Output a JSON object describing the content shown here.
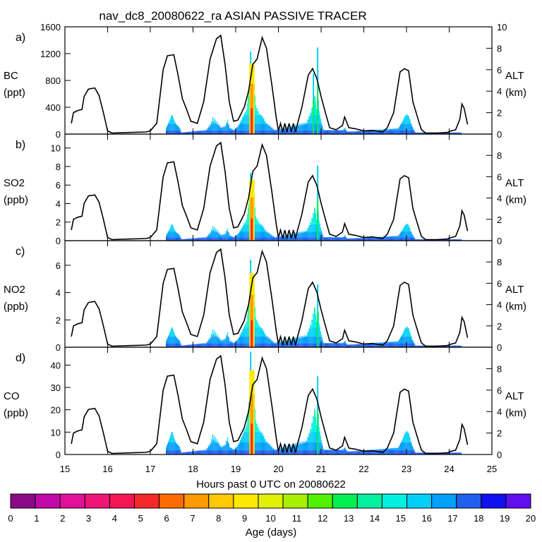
{
  "chart_data": {
    "type": "area",
    "title": "nav_dc8_20080622_ra ASIAN PASSIVE TRACER",
    "xlabel": "Hours past 0 UTC on 20080622",
    "xlim": [
      15,
      25
    ],
    "x_ticks": [
      "15",
      "16",
      "17",
      "18",
      "19",
      "20",
      "21",
      "22",
      "23",
      "24",
      "25"
    ],
    "altitude_axis": {
      "label": "ALT",
      "units": "(km)",
      "ticks": [
        "0",
        "2",
        "4",
        "6",
        "8",
        "10"
      ],
      "flight_track": [
        [
          15.15,
          1.0
        ],
        [
          15.2,
          2.0
        ],
        [
          15.3,
          2.2
        ],
        [
          15.4,
          2.3
        ],
        [
          15.45,
          3.5
        ],
        [
          15.55,
          4.2
        ],
        [
          15.7,
          4.3
        ],
        [
          15.8,
          3.6
        ],
        [
          15.9,
          2.0
        ],
        [
          16.0,
          0.3
        ],
        [
          16.1,
          0.1
        ],
        [
          16.5,
          0.15
        ],
        [
          16.9,
          0.2
        ],
        [
          17.0,
          0.3
        ],
        [
          17.15,
          1.0
        ],
        [
          17.3,
          6.0
        ],
        [
          17.4,
          7.3
        ],
        [
          17.55,
          7.4
        ],
        [
          17.65,
          5.5
        ],
        [
          17.75,
          3.3
        ],
        [
          17.85,
          2.3
        ],
        [
          17.95,
          1.2
        ],
        [
          18.1,
          1.0
        ],
        [
          18.25,
          3.0
        ],
        [
          18.4,
          7.0
        ],
        [
          18.55,
          8.9
        ],
        [
          18.65,
          9.2
        ],
        [
          18.75,
          6.5
        ],
        [
          18.85,
          3.0
        ],
        [
          18.95,
          1.2
        ],
        [
          19.05,
          1.3
        ],
        [
          19.2,
          2.5
        ],
        [
          19.3,
          4.0
        ],
        [
          19.4,
          6.5
        ],
        [
          19.5,
          7.0
        ],
        [
          19.62,
          9.0
        ],
        [
          19.72,
          8.0
        ],
        [
          19.85,
          4.5
        ],
        [
          19.95,
          1.5
        ],
        [
          20.0,
          0.3
        ],
        [
          20.05,
          1.0
        ],
        [
          20.1,
          0.2
        ],
        [
          20.15,
          1.0
        ],
        [
          20.2,
          0.2
        ],
        [
          20.25,
          1.0
        ],
        [
          20.3,
          0.2
        ],
        [
          20.35,
          1.0
        ],
        [
          20.4,
          0.2
        ],
        [
          20.45,
          1.0
        ],
        [
          20.55,
          2.5
        ],
        [
          20.7,
          5.5
        ],
        [
          20.8,
          6.1
        ],
        [
          20.9,
          5.2
        ],
        [
          21.0,
          3.5
        ],
        [
          21.1,
          2.0
        ],
        [
          21.2,
          0.6
        ],
        [
          21.35,
          0.4
        ],
        [
          21.5,
          0.8
        ],
        [
          21.55,
          1.6
        ],
        [
          21.65,
          0.6
        ],
        [
          21.8,
          0.5
        ],
        [
          22.0,
          0.3
        ],
        [
          22.2,
          0.35
        ],
        [
          22.45,
          0.2
        ],
        [
          22.55,
          0.6
        ],
        [
          22.7,
          2.0
        ],
        [
          22.85,
          5.8
        ],
        [
          22.95,
          6.1
        ],
        [
          23.05,
          5.9
        ],
        [
          23.15,
          3.0
        ],
        [
          23.3,
          1.0
        ],
        [
          23.35,
          0.4
        ],
        [
          23.45,
          0.1
        ],
        [
          23.7,
          0.1
        ],
        [
          23.95,
          0.15
        ],
        [
          24.05,
          0.3
        ],
        [
          24.15,
          0.4
        ],
        [
          24.25,
          1.4
        ],
        [
          24.3,
          2.8
        ],
        [
          24.35,
          2.4
        ],
        [
          24.43,
          0.9
        ]
      ]
    },
    "tracer_profile": [
      [
        17.35,
        0.06
      ],
      [
        17.45,
        0.18
      ],
      [
        17.5,
        0.25
      ],
      [
        17.55,
        0.17
      ],
      [
        17.6,
        0.12
      ],
      [
        17.68,
        0.08
      ],
      [
        17.72,
        0.02
      ],
      [
        18.3,
        0.05
      ],
      [
        18.4,
        0.12
      ],
      [
        18.45,
        0.2
      ],
      [
        18.5,
        0.18
      ],
      [
        18.58,
        0.13
      ],
      [
        18.65,
        0.08
      ],
      [
        18.75,
        0.1
      ],
      [
        18.8,
        0.18
      ],
      [
        18.85,
        0.08
      ],
      [
        18.95,
        0.05
      ],
      [
        19.05,
        0.1
      ],
      [
        19.1,
        0.15
      ],
      [
        19.15,
        0.2
      ],
      [
        19.2,
        0.26
      ],
      [
        19.25,
        0.3
      ],
      [
        19.3,
        0.55
      ],
      [
        19.35,
        0.75
      ],
      [
        19.38,
        0.82
      ],
      [
        19.42,
        0.7
      ],
      [
        19.46,
        0.35
      ],
      [
        19.55,
        0.25
      ],
      [
        19.62,
        0.22
      ],
      [
        19.7,
        0.14
      ],
      [
        19.8,
        0.1
      ],
      [
        19.9,
        0.05
      ],
      [
        20.65,
        0.14
      ],
      [
        20.75,
        0.27
      ],
      [
        20.82,
        0.42
      ],
      [
        20.85,
        0.5
      ],
      [
        20.88,
        0.3
      ],
      [
        20.92,
        0.5
      ],
      [
        20.95,
        0.28
      ],
      [
        21.0,
        0.14
      ],
      [
        21.05,
        0.05
      ],
      [
        21.5,
        0.05
      ],
      [
        21.55,
        0.08
      ],
      [
        21.6,
        0.03
      ],
      [
        22.8,
        0.07
      ],
      [
        22.9,
        0.16
      ],
      [
        22.95,
        0.22
      ],
      [
        23.0,
        0.25
      ],
      [
        23.05,
        0.22
      ],
      [
        23.12,
        0.1
      ],
      [
        23.2,
        0.02
      ],
      [
        24.28,
        0.02
      ]
    ],
    "panels": [
      {
        "label": "a)",
        "species": "BC",
        "units": "(ppt)",
        "ylim": [
          0,
          1600
        ],
        "y_ticks": [
          "0",
          "400",
          "800",
          "1200",
          "1600"
        ],
        "tracer_peak": 1290,
        "spikes": [
          [
            19.35,
            1230
          ],
          [
            20.92,
            1290
          ],
          [
            20.82,
            900
          ]
        ]
      },
      {
        "label": "b)",
        "species": "SO2",
        "units": "(ppb)",
        "ylim": [
          0,
          11.5
        ],
        "y_ticks": [
          "0",
          "2",
          "4",
          "6",
          "8",
          "10"
        ],
        "tracer_peak": 8.0,
        "spikes": [
          [
            20.92,
            8.1
          ],
          [
            19.35,
            7.3
          ]
        ]
      },
      {
        "label": "c)",
        "species": "NO2",
        "units": "(ppb)",
        "ylim": [
          0,
          7.8
        ],
        "y_ticks": [
          "0",
          "2",
          "4",
          "6"
        ],
        "tracer_peak": 6.6,
        "spikes": [
          [
            19.35,
            6.4
          ],
          [
            20.92,
            4.6
          ]
        ]
      },
      {
        "label": "d)",
        "species": "CO",
        "units": "(ppb)",
        "ylim": [
          0,
          48
        ],
        "y_ticks": [
          "0",
          "10",
          "20",
          "30",
          "40"
        ],
        "tracer_peak": 46,
        "spikes": [
          [
            19.35,
            46
          ],
          [
            20.92,
            35
          ]
        ]
      }
    ],
    "colorbar": {
      "label": "Age (days)",
      "ticks": [
        "0",
        "1",
        "2",
        "3",
        "4",
        "5",
        "6",
        "7",
        "8",
        "9",
        "10",
        "11",
        "12",
        "13",
        "14",
        "15",
        "16",
        "17",
        "18",
        "19",
        "20"
      ],
      "colors": [
        "#8a0a8a",
        "#c00aa8",
        "#e0109a",
        "#f01478",
        "#f51454",
        "#f5282a",
        "#ff6a00",
        "#ff9a00",
        "#ffc800",
        "#ffe800",
        "#e0f000",
        "#a8f000",
        "#50f000",
        "#00f050",
        "#00f0a0",
        "#00f0e0",
        "#00d0f8",
        "#00a0f8",
        "#2060f0",
        "#1010f0",
        "#6010f0"
      ]
    }
  }
}
